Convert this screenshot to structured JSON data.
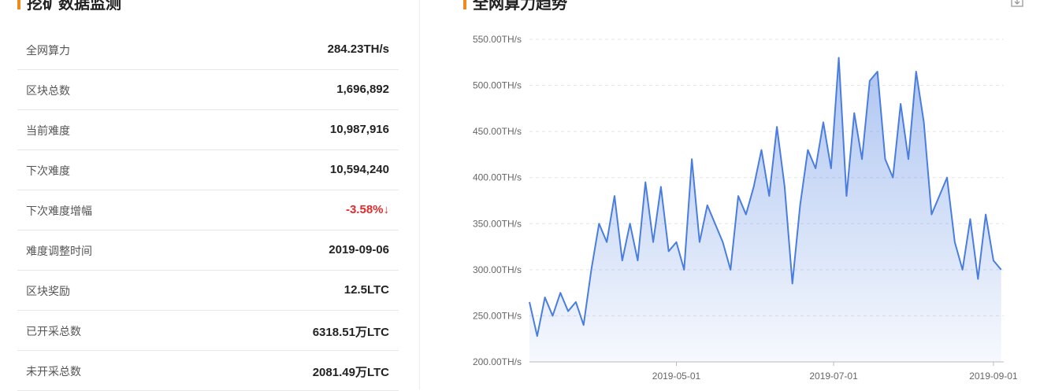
{
  "panel": {
    "title": "挖矿数据监测",
    "rows": [
      [
        "全网算力",
        "284.23TH/s"
      ],
      [
        "区块总数",
        "1,696,892"
      ],
      [
        "当前难度",
        "10,987,916"
      ],
      [
        "下次难度",
        "10,594,240"
      ],
      [
        "下次难度增幅",
        "-3.58%↓"
      ],
      [
        "难度调整时间",
        "2019-09-06"
      ],
      [
        "区块奖励",
        "12.5LTC"
      ],
      [
        "已开采总数",
        "6318.51万LTC"
      ],
      [
        "未开采总数",
        "2081.49万LTC"
      ]
    ]
  },
  "chart_data": {
    "type": "line",
    "title": "全网算力趋势",
    "color": "#4a7de0",
    "grid": true,
    "x": [
      "2019-03-05",
      "2019-03-08",
      "2019-03-11",
      "2019-03-14",
      "2019-03-17",
      "2019-03-20",
      "2019-03-23",
      "2019-03-26",
      "2019-03-29",
      "2019-04-01",
      "2019-04-04",
      "2019-04-07",
      "2019-04-10",
      "2019-04-13",
      "2019-04-16",
      "2019-04-19",
      "2019-04-22",
      "2019-04-25",
      "2019-04-28",
      "2019-05-01",
      "2019-05-04",
      "2019-05-07",
      "2019-05-10",
      "2019-05-13",
      "2019-05-16",
      "2019-05-19",
      "2019-05-22",
      "2019-05-25",
      "2019-05-28",
      "2019-05-31",
      "2019-06-03",
      "2019-06-06",
      "2019-06-09",
      "2019-06-12",
      "2019-06-15",
      "2019-06-18",
      "2019-06-21",
      "2019-06-24",
      "2019-06-27",
      "2019-06-30",
      "2019-07-03",
      "2019-07-06",
      "2019-07-09",
      "2019-07-12",
      "2019-07-15",
      "2019-07-18",
      "2019-07-21",
      "2019-07-24",
      "2019-07-27",
      "2019-07-30",
      "2019-08-02",
      "2019-08-05",
      "2019-08-08",
      "2019-08-11",
      "2019-08-14",
      "2019-08-17",
      "2019-08-20",
      "2019-08-23",
      "2019-08-26",
      "2019-08-29",
      "2019-09-01",
      "2019-09-04"
    ],
    "values": [
      265,
      228,
      270,
      250,
      275,
      255,
      265,
      240,
      300,
      350,
      330,
      380,
      310,
      350,
      310,
      395,
      330,
      390,
      320,
      330,
      300,
      420,
      330,
      370,
      350,
      330,
      300,
      380,
      360,
      390,
      430,
      380,
      455,
      390,
      285,
      370,
      430,
      410,
      460,
      410,
      530,
      380,
      470,
      420,
      505,
      515,
      420,
      400,
      480,
      420,
      515,
      460,
      360,
      380,
      400,
      330,
      300,
      355,
      290,
      360,
      310,
      300
    ],
    "xlim": [
      "2019-03-05",
      "2019-09-05"
    ],
    "xticks": [
      "2019-05-01",
      "2019-07-01",
      "2019-09-01"
    ],
    "ylim": [
      200,
      550
    ],
    "yticks": [
      {
        "value": 200,
        "label": "200.00TH/s"
      },
      {
        "value": 250,
        "label": "250.00TH/s"
      },
      {
        "value": 300,
        "label": "300.00TH/s"
      },
      {
        "value": 350,
        "label": "350.00TH/s"
      },
      {
        "value": 400,
        "label": "400.00TH/s"
      },
      {
        "value": 450,
        "label": "450.00TH/s"
      },
      {
        "value": 500,
        "label": "500.00TH/s"
      },
      {
        "value": 550,
        "label": "550.00TH/s"
      }
    ]
  }
}
